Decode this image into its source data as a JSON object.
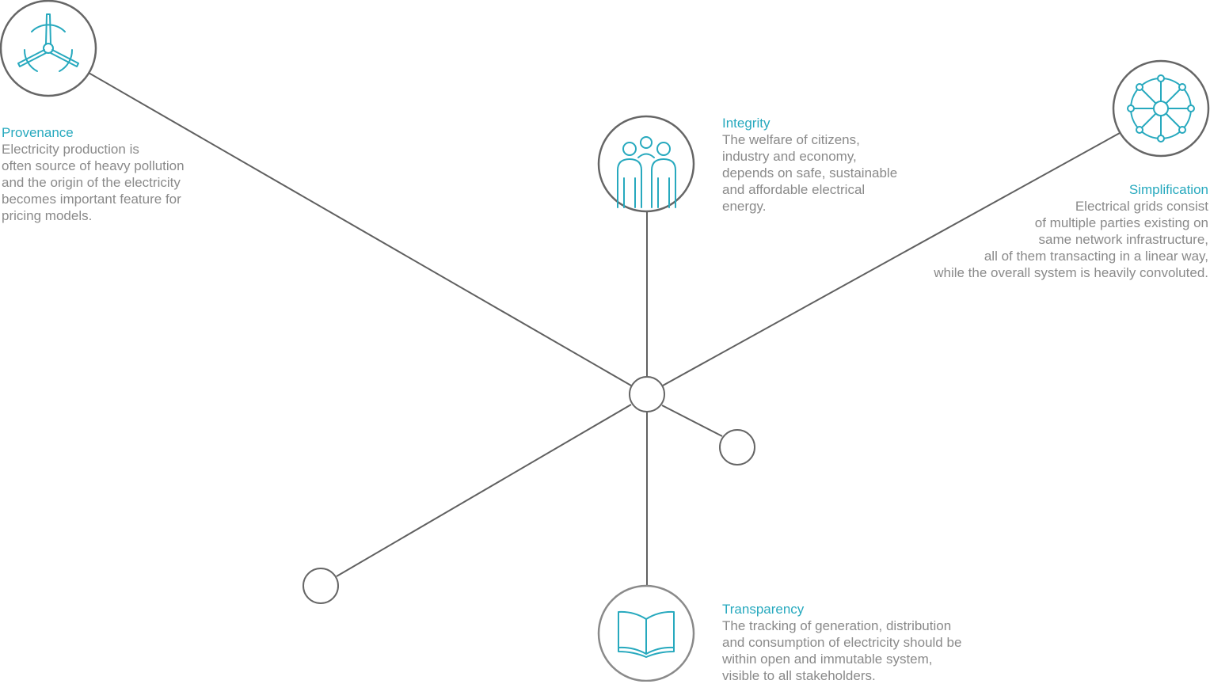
{
  "colors": {
    "accent": "#27a9be",
    "line": "#606060",
    "text": "#8a8a8a",
    "node_stroke": "#666666"
  },
  "nodes": {
    "provenance": {
      "icon": "wind-turbine-icon",
      "title": "Provenance",
      "text": "Electricity production is\noften source of heavy pollution\nand the origin of the electricity\nbecomes important feature for\npricing models."
    },
    "integrity": {
      "icon": "people-group-icon",
      "title": "Integrity",
      "text": "The welfare of citizens,\nindustry and economy,\ndepends on safe, sustainable\nand affordable electrical\nenergy."
    },
    "simplification": {
      "icon": "network-wheel-icon",
      "title": "Simplification",
      "text": "Electrical grids consist\nof multiple parties existing on\nsame network infrastructure,\nall of them transacting in a linear way,\nwhile the overall system is heavily convoluted."
    },
    "transparency": {
      "icon": "open-book-icon",
      "title": "Transparency",
      "text": "The tracking of generation, distribution\nand consumption of electricity should be\nwithin open and immutable system,\nvisible to all stakeholders."
    }
  }
}
